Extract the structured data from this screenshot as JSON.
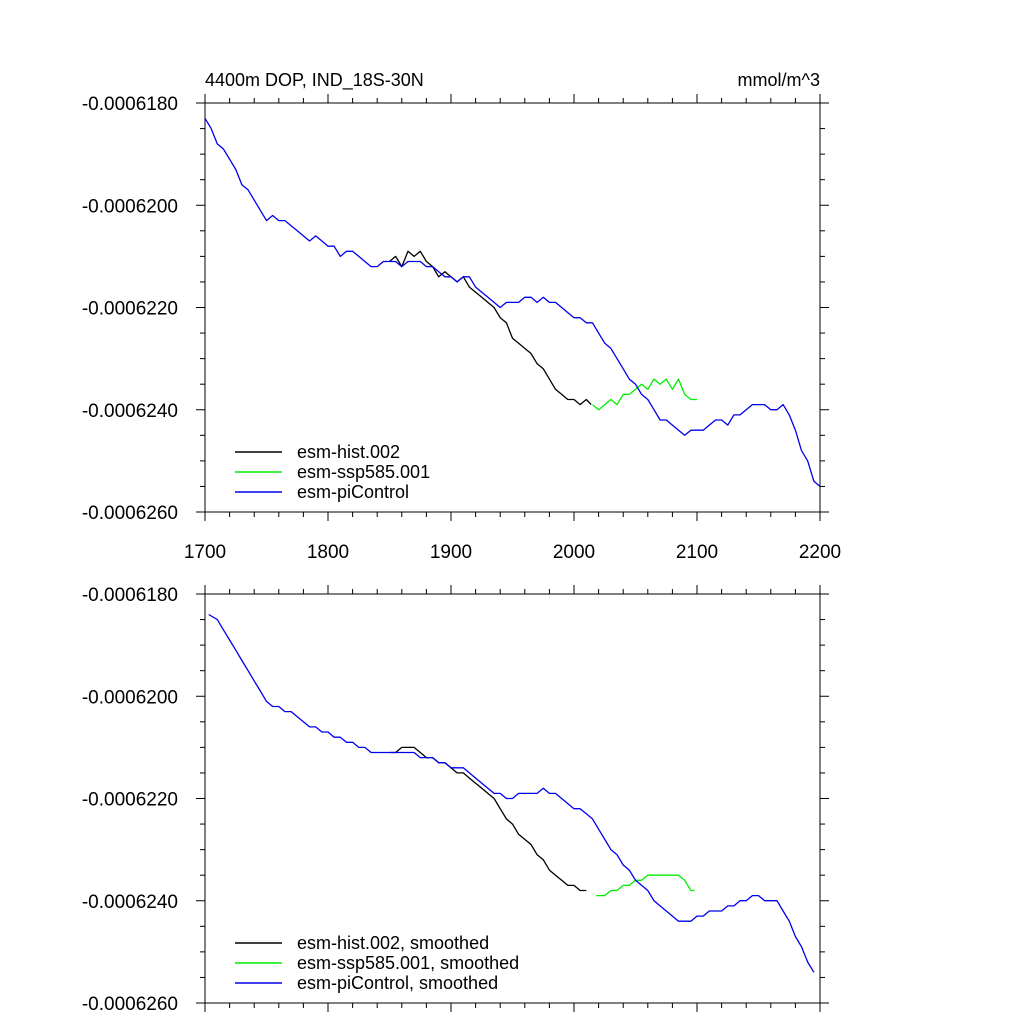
{
  "colors": {
    "hist": "#000000",
    "ssp": "#00ee00",
    "pic": "#0000ee"
  },
  "chart_data": [
    {
      "type": "line",
      "title": "4400m DOP, IND_18S-30N",
      "units": "mmol/m^3",
      "xlabel": "",
      "ylabel": "",
      "xlim": [
        1700,
        2200
      ],
      "ylim": [
        -0.000626,
        -0.000618
      ],
      "xticks": [
        "1700",
        "1800",
        "1900",
        "2000",
        "2100",
        "2200"
      ],
      "yticks": [
        "-0.0006180",
        "-0.0006200",
        "-0.0006220",
        "-0.0006240",
        "-0.0006260"
      ],
      "legend_position": "bottom-left",
      "series": [
        {
          "name": "esm-hist.002",
          "color_key": "hist",
          "x": [
            1850,
            1855,
            1860,
            1865,
            1870,
            1875,
            1880,
            1885,
            1890,
            1895,
            1900,
            1905,
            1910,
            1915,
            1920,
            1925,
            1930,
            1935,
            1940,
            1945,
            1950,
            1955,
            1960,
            1965,
            1970,
            1975,
            1980,
            1985,
            1990,
            1995,
            2000,
            2005,
            2010,
            2014
          ],
          "y": [
            -0.0006211,
            -0.000621,
            -0.0006212,
            -0.0006209,
            -0.000621,
            -0.0006209,
            -0.0006211,
            -0.0006212,
            -0.0006214,
            -0.0006213,
            -0.0006214,
            -0.0006215,
            -0.0006214,
            -0.0006216,
            -0.0006217,
            -0.0006218,
            -0.0006219,
            -0.000622,
            -0.0006222,
            -0.0006223,
            -0.0006226,
            -0.0006227,
            -0.0006228,
            -0.0006229,
            -0.0006231,
            -0.0006232,
            -0.0006234,
            -0.0006236,
            -0.0006237,
            -0.0006238,
            -0.0006238,
            -0.0006239,
            -0.0006238,
            -0.0006239
          ]
        },
        {
          "name": "esm-ssp585.001",
          "color_key": "ssp",
          "x": [
            2015,
            2020,
            2025,
            2030,
            2035,
            2040,
            2045,
            2050,
            2055,
            2060,
            2065,
            2070,
            2075,
            2080,
            2085,
            2090,
            2095,
            2100
          ],
          "y": [
            -0.0006239,
            -0.000624,
            -0.0006239,
            -0.0006238,
            -0.0006239,
            -0.0006237,
            -0.0006237,
            -0.0006236,
            -0.0006235,
            -0.0006236,
            -0.0006234,
            -0.0006235,
            -0.0006234,
            -0.0006236,
            -0.0006234,
            -0.0006237,
            -0.0006238,
            -0.0006238
          ]
        },
        {
          "name": "esm-piControl",
          "color_key": "pic",
          "x": [
            1700,
            1705,
            1710,
            1715,
            1720,
            1725,
            1730,
            1735,
            1740,
            1745,
            1750,
            1755,
            1760,
            1765,
            1770,
            1775,
            1780,
            1785,
            1790,
            1795,
            1800,
            1805,
            1810,
            1815,
            1820,
            1825,
            1830,
            1835,
            1840,
            1845,
            1850,
            1855,
            1860,
            1865,
            1870,
            1875,
            1880,
            1885,
            1890,
            1895,
            1900,
            1905,
            1910,
            1915,
            1920,
            1925,
            1930,
            1935,
            1940,
            1945,
            1950,
            1955,
            1960,
            1965,
            1970,
            1975,
            1980,
            1985,
            1990,
            1995,
            2000,
            2005,
            2010,
            2015,
            2020,
            2025,
            2030,
            2035,
            2040,
            2045,
            2050,
            2055,
            2060,
            2065,
            2070,
            2075,
            2080,
            2085,
            2090,
            2095,
            2100,
            2105,
            2110,
            2115,
            2120,
            2125,
            2130,
            2135,
            2140,
            2145,
            2150,
            2155,
            2160,
            2165,
            2170,
            2175,
            2180,
            2185,
            2190,
            2195,
            2200
          ],
          "y": [
            -0.0006183,
            -0.0006185,
            -0.0006188,
            -0.0006189,
            -0.0006191,
            -0.0006193,
            -0.0006196,
            -0.0006197,
            -0.0006199,
            -0.0006201,
            -0.0006203,
            -0.0006202,
            -0.0006203,
            -0.0006203,
            -0.0006204,
            -0.0006205,
            -0.0006206,
            -0.0006207,
            -0.0006206,
            -0.0006207,
            -0.0006208,
            -0.0006208,
            -0.000621,
            -0.0006209,
            -0.0006209,
            -0.000621,
            -0.0006211,
            -0.0006212,
            -0.0006212,
            -0.0006211,
            -0.0006211,
            -0.0006211,
            -0.0006212,
            -0.0006211,
            -0.0006211,
            -0.0006211,
            -0.0006212,
            -0.0006212,
            -0.0006213,
            -0.0006214,
            -0.0006214,
            -0.0006215,
            -0.0006214,
            -0.0006214,
            -0.0006216,
            -0.0006217,
            -0.0006218,
            -0.0006219,
            -0.000622,
            -0.0006219,
            -0.0006219,
            -0.0006219,
            -0.0006218,
            -0.0006218,
            -0.0006219,
            -0.0006218,
            -0.0006219,
            -0.0006219,
            -0.000622,
            -0.0006221,
            -0.0006222,
            -0.0006222,
            -0.0006223,
            -0.0006223,
            -0.0006225,
            -0.0006227,
            -0.0006228,
            -0.000623,
            -0.0006232,
            -0.0006234,
            -0.0006235,
            -0.0006237,
            -0.0006238,
            -0.000624,
            -0.0006242,
            -0.0006242,
            -0.0006243,
            -0.0006244,
            -0.0006245,
            -0.0006244,
            -0.0006244,
            -0.0006244,
            -0.0006243,
            -0.0006242,
            -0.0006242,
            -0.0006243,
            -0.0006241,
            -0.0006241,
            -0.000624,
            -0.0006239,
            -0.0006239,
            -0.0006239,
            -0.000624,
            -0.000624,
            -0.0006239,
            -0.0006241,
            -0.0006244,
            -0.0006248,
            -0.000625,
            -0.0006254,
            -0.0006255
          ]
        }
      ]
    },
    {
      "type": "line",
      "title": "",
      "xlabel": "",
      "ylabel": "",
      "xlim": [
        1700,
        2200
      ],
      "ylim": [
        -0.000626,
        -0.000618
      ],
      "yticks": [
        "-0.0006180",
        "-0.0006200",
        "-0.0006220",
        "-0.0006240",
        "-0.0006260"
      ],
      "legend_position": "bottom-left",
      "series": [
        {
          "name": "esm-hist.002, smoothed",
          "color_key": "hist",
          "x": [
            1850,
            1855,
            1860,
            1865,
            1870,
            1875,
            1880,
            1885,
            1890,
            1895,
            1900,
            1905,
            1910,
            1915,
            1920,
            1925,
            1930,
            1935,
            1940,
            1945,
            1950,
            1955,
            1960,
            1965,
            1970,
            1975,
            1980,
            1985,
            1990,
            1995,
            2000,
            2005,
            2010
          ],
          "y": [
            -0.0006211,
            -0.0006211,
            -0.000621,
            -0.000621,
            -0.000621,
            -0.0006211,
            -0.0006212,
            -0.0006212,
            -0.0006213,
            -0.0006213,
            -0.0006214,
            -0.0006215,
            -0.0006215,
            -0.0006216,
            -0.0006217,
            -0.0006218,
            -0.0006219,
            -0.000622,
            -0.0006222,
            -0.0006224,
            -0.0006225,
            -0.0006227,
            -0.0006228,
            -0.0006229,
            -0.0006231,
            -0.0006232,
            -0.0006234,
            -0.0006235,
            -0.0006236,
            -0.0006237,
            -0.0006237,
            -0.0006238,
            -0.0006238
          ]
        },
        {
          "name": "esm-ssp585.001, smoothed",
          "color_key": "ssp",
          "x": [
            2018,
            2025,
            2030,
            2035,
            2040,
            2045,
            2050,
            2055,
            2060,
            2065,
            2070,
            2075,
            2080,
            2085,
            2090,
            2095,
            2098
          ],
          "y": [
            -0.0006239,
            -0.0006239,
            -0.0006238,
            -0.0006238,
            -0.0006237,
            -0.0006237,
            -0.0006236,
            -0.0006236,
            -0.0006235,
            -0.0006235,
            -0.0006235,
            -0.0006235,
            -0.0006235,
            -0.0006235,
            -0.0006236,
            -0.0006238,
            -0.0006238
          ]
        },
        {
          "name": "esm-piControl, smoothed",
          "color_key": "pic",
          "x": [
            1703,
            1710,
            1715,
            1720,
            1725,
            1730,
            1735,
            1740,
            1745,
            1750,
            1755,
            1760,
            1765,
            1770,
            1775,
            1780,
            1785,
            1790,
            1795,
            1800,
            1805,
            1810,
            1815,
            1820,
            1825,
            1830,
            1835,
            1840,
            1845,
            1850,
            1855,
            1860,
            1865,
            1870,
            1875,
            1880,
            1885,
            1890,
            1895,
            1900,
            1905,
            1910,
            1915,
            1920,
            1925,
            1930,
            1935,
            1940,
            1945,
            1950,
            1955,
            1960,
            1965,
            1970,
            1975,
            1980,
            1985,
            1990,
            1995,
            2000,
            2005,
            2010,
            2015,
            2020,
            2025,
            2030,
            2035,
            2040,
            2045,
            2050,
            2055,
            2060,
            2065,
            2070,
            2075,
            2080,
            2085,
            2090,
            2095,
            2100,
            2105,
            2110,
            2115,
            2120,
            2125,
            2130,
            2135,
            2140,
            2145,
            2150,
            2155,
            2160,
            2165,
            2170,
            2175,
            2180,
            2185,
            2190,
            2195
          ],
          "y": [
            -0.0006184,
            -0.0006185,
            -0.0006187,
            -0.0006189,
            -0.0006191,
            -0.0006193,
            -0.0006195,
            -0.0006197,
            -0.0006199,
            -0.0006201,
            -0.0006202,
            -0.0006202,
            -0.0006203,
            -0.0006203,
            -0.0006204,
            -0.0006205,
            -0.0006206,
            -0.0006206,
            -0.0006207,
            -0.0006207,
            -0.0006208,
            -0.0006208,
            -0.0006209,
            -0.0006209,
            -0.000621,
            -0.000621,
            -0.0006211,
            -0.0006211,
            -0.0006211,
            -0.0006211,
            -0.0006211,
            -0.0006211,
            -0.0006211,
            -0.0006211,
            -0.0006212,
            -0.0006212,
            -0.0006212,
            -0.0006213,
            -0.0006213,
            -0.0006214,
            -0.0006214,
            -0.0006214,
            -0.0006215,
            -0.0006216,
            -0.0006217,
            -0.0006218,
            -0.0006219,
            -0.0006219,
            -0.000622,
            -0.000622,
            -0.0006219,
            -0.0006219,
            -0.0006219,
            -0.0006219,
            -0.0006218,
            -0.0006219,
            -0.0006219,
            -0.000622,
            -0.0006221,
            -0.0006222,
            -0.0006222,
            -0.0006223,
            -0.0006224,
            -0.0006226,
            -0.0006228,
            -0.000623,
            -0.0006231,
            -0.0006233,
            -0.0006234,
            -0.0006236,
            -0.0006237,
            -0.0006238,
            -0.000624,
            -0.0006241,
            -0.0006242,
            -0.0006243,
            -0.0006244,
            -0.0006244,
            -0.0006244,
            -0.0006243,
            -0.0006243,
            -0.0006242,
            -0.0006242,
            -0.0006242,
            -0.0006241,
            -0.0006241,
            -0.000624,
            -0.000624,
            -0.0006239,
            -0.0006239,
            -0.000624,
            -0.000624,
            -0.000624,
            -0.0006242,
            -0.0006244,
            -0.0006247,
            -0.0006249,
            -0.0006252,
            -0.0006254
          ]
        }
      ]
    }
  ]
}
